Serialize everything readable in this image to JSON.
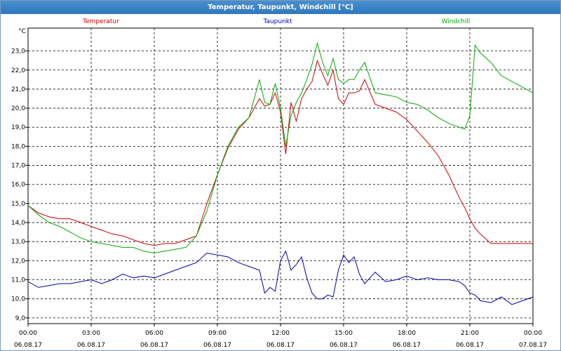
{
  "window": {
    "title": "Temperatur, Taupunkt, Windchill [°C]"
  },
  "colors": {
    "temperatur": "#cc0000",
    "taupunkt": "#0000aa",
    "windchill": "#00aa00",
    "grid": "#000000"
  },
  "chart_data": {
    "type": "line",
    "title": "Temperatur, Taupunkt, Windchill [°C]",
    "ylabel": "°C",
    "xlabel": "",
    "ylim": [
      8.7,
      24.2
    ],
    "xlim": [
      "06.08.17 00:00",
      "07.08.17 00:00"
    ],
    "grid": true,
    "legend_position": "top",
    "y_ticks": [
      "9,0",
      "10,0",
      "11,0",
      "12,0",
      "13,0",
      "14,0",
      "15,0",
      "16,0",
      "17,0",
      "18,0",
      "19,0",
      "20,0",
      "21,0",
      "22,0",
      "23,0"
    ],
    "y_tick_values": [
      9,
      10,
      11,
      12,
      13,
      14,
      15,
      16,
      17,
      18,
      19,
      20,
      21,
      22,
      23
    ],
    "x_ticks": [
      {
        "time": "00:00",
        "date": "06.08.17"
      },
      {
        "time": "03:00",
        "date": "06.08.17"
      },
      {
        "time": "06:00",
        "date": "06.08.17"
      },
      {
        "time": "09:00",
        "date": "06.08.17"
      },
      {
        "time": "12:00",
        "date": "06.08.17"
      },
      {
        "time": "15:00",
        "date": "06.08.17"
      },
      {
        "time": "18:00",
        "date": "06.08.17"
      },
      {
        "time": "21:00",
        "date": "06.08.17"
      },
      {
        "time": "00:00",
        "date": "07.08.17"
      }
    ],
    "x_hours": [
      0,
      0.5,
      1,
      1.5,
      2,
      2.5,
      3,
      3.5,
      4,
      4.5,
      5,
      5.5,
      6,
      6.5,
      7,
      7.5,
      8,
      8.5,
      9,
      9.5,
      10,
      10.5,
      11,
      11.25,
      11.5,
      11.75,
      12,
      12.25,
      12.5,
      12.75,
      13,
      13.25,
      13.5,
      13.75,
      14,
      14.25,
      14.5,
      14.75,
      15,
      15.25,
      15.5,
      15.75,
      16,
      16.5,
      17,
      17.5,
      18,
      18.5,
      19,
      19.5,
      20,
      20.5,
      20.75,
      21,
      21.25,
      21.5,
      22,
      22.5,
      23,
      23.5,
      24
    ],
    "series": [
      {
        "name": "Temperatur",
        "color": "#cc0000",
        "values": [
          14.9,
          14.5,
          14.3,
          14.2,
          14.2,
          14.0,
          13.8,
          13.6,
          13.4,
          13.3,
          13.1,
          12.9,
          12.8,
          12.9,
          12.9,
          13.1,
          13.3,
          15.0,
          16.5,
          17.9,
          18.9,
          19.5,
          20.5,
          20.1,
          20.2,
          20.8,
          19.8,
          17.6,
          20.3,
          19.3,
          20.5,
          21.0,
          21.4,
          22.5,
          21.8,
          21.2,
          22.0,
          20.5,
          20.2,
          20.8,
          20.8,
          20.9,
          21.5,
          20.2,
          20.0,
          19.8,
          19.4,
          18.8,
          18.2,
          17.5,
          16.5,
          15.3,
          14.8,
          14.2,
          13.7,
          13.4,
          12.9,
          12.9,
          12.9,
          12.9,
          12.9
        ]
      },
      {
        "name": "Taupunkt",
        "color": "#0000aa",
        "values": [
          10.9,
          10.6,
          10.7,
          10.8,
          10.8,
          10.9,
          11.0,
          10.8,
          11.0,
          11.3,
          11.1,
          11.2,
          11.1,
          11.3,
          11.5,
          11.7,
          11.9,
          12.4,
          12.3,
          12.2,
          11.9,
          11.7,
          11.5,
          10.3,
          10.6,
          10.4,
          12.0,
          12.5,
          11.5,
          11.8,
          12.2,
          11.1,
          10.3,
          10.0,
          10.0,
          10.2,
          10.1,
          11.5,
          12.3,
          11.9,
          12.2,
          11.3,
          10.8,
          11.4,
          10.9,
          11.0,
          11.2,
          11.0,
          11.1,
          11.0,
          11.0,
          10.9,
          10.7,
          10.3,
          10.2,
          9.9,
          9.8,
          10.1,
          9.7,
          9.9,
          10.1
        ]
      },
      {
        "name": "Windchill",
        "color": "#00aa00",
        "values": [
          14.9,
          14.4,
          14.0,
          13.8,
          13.5,
          13.2,
          13.0,
          12.9,
          12.8,
          12.7,
          12.7,
          12.5,
          12.4,
          12.5,
          12.6,
          12.7,
          13.3,
          14.6,
          16.5,
          18.0,
          19.0,
          19.5,
          21.5,
          20.3,
          20.2,
          21.3,
          20.0,
          18.0,
          19.6,
          20.3,
          20.8,
          21.5,
          22.3,
          23.4,
          22.4,
          21.7,
          22.6,
          21.5,
          21.3,
          21.5,
          21.5,
          22.0,
          22.4,
          20.8,
          20.7,
          20.6,
          20.3,
          20.2,
          19.9,
          19.5,
          19.2,
          19.0,
          18.9,
          19.6,
          23.3,
          22.9,
          22.4,
          21.7,
          21.4,
          21.1,
          20.8
        ]
      }
    ]
  }
}
